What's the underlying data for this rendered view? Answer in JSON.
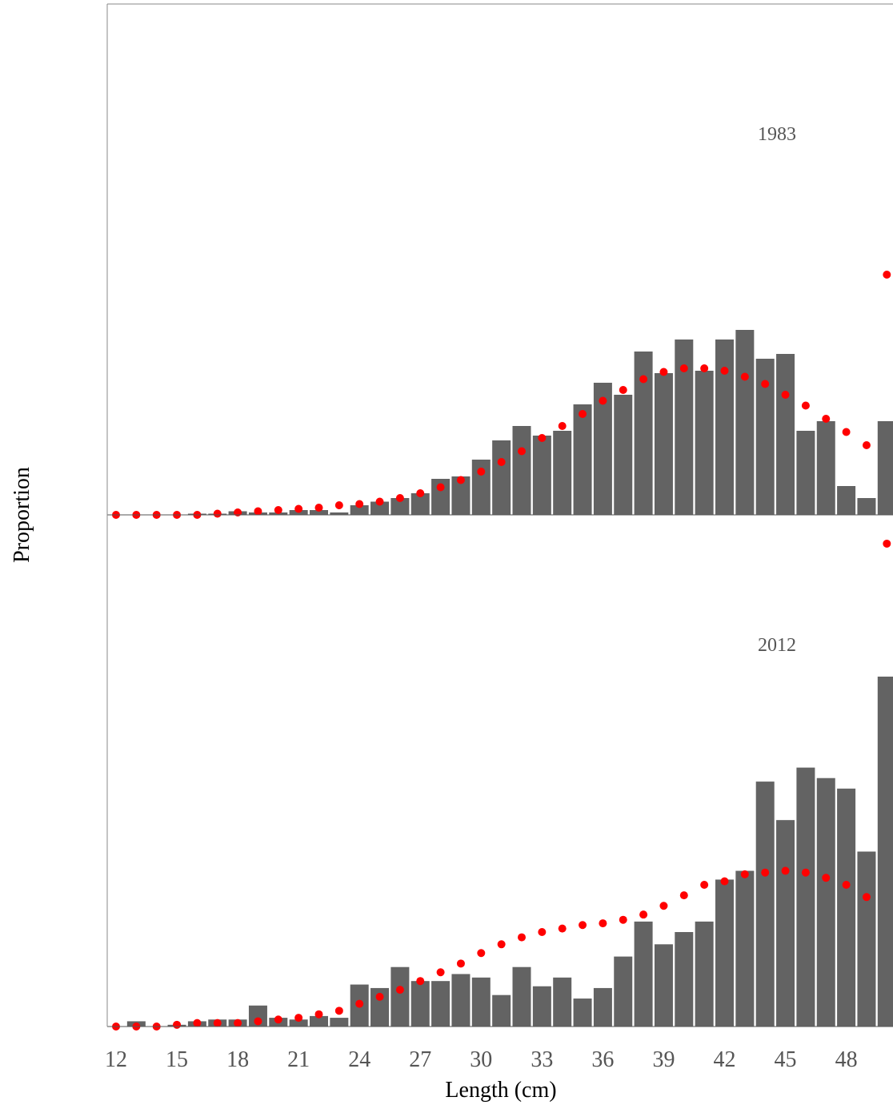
{
  "chart_data": {
    "type": "bar",
    "xlabel": "Length (cm)",
    "ylabel": "Proportion",
    "x_ticks": [
      12,
      15,
      18,
      21,
      24,
      27,
      30,
      33,
      36,
      39,
      42,
      45,
      48
    ],
    "x": [
      12,
      13,
      14,
      15,
      16,
      17,
      18,
      19,
      20,
      21,
      22,
      23,
      24,
      25,
      26,
      27,
      28,
      29,
      30,
      31,
      32,
      33,
      34,
      35,
      36,
      37,
      38,
      39,
      40,
      41,
      42,
      43,
      44,
      45,
      46,
      47,
      48,
      49,
      50
    ],
    "grid": false,
    "legend": "none",
    "colors": {
      "bars": "#636363",
      "points": "#ff0000",
      "frame": "#888888"
    },
    "panels": [
      {
        "label": "1983",
        "ylim": [
          0,
          1.0
        ],
        "observed": [
          0,
          0,
          0,
          0,
          0.005,
          0.005,
          0.015,
          0.01,
          0.01,
          0.02,
          0.02,
          0.01,
          0.04,
          0.055,
          0.07,
          0.09,
          0.15,
          0.16,
          0.23,
          0.31,
          0.37,
          0.33,
          0.35,
          0.46,
          0.55,
          0.5,
          0.68,
          0.59,
          0.73,
          0.6,
          0.73,
          0.77,
          0.65,
          0.67,
          0.35,
          0.39,
          0.12,
          0.07,
          0.39
        ],
        "expected": [
          0,
          0,
          0,
          0,
          0,
          0.005,
          0.01,
          0.015,
          0.02,
          0.025,
          0.03,
          0.04,
          0.045,
          0.055,
          0.07,
          0.09,
          0.115,
          0.145,
          0.18,
          0.22,
          0.265,
          0.32,
          0.37,
          0.42,
          0.475,
          0.52,
          0.565,
          0.595,
          0.61,
          0.61,
          0.6,
          0.575,
          0.545,
          0.5,
          0.455,
          0.4,
          0.345,
          0.29,
          1.0
        ]
      },
      {
        "label": "2012",
        "ylim": [
          0,
          1.0
        ],
        "observed": [
          0,
          0.015,
          0,
          0.005,
          0.015,
          0.02,
          0.02,
          0.06,
          0.025,
          0.02,
          0.03,
          0.025,
          0.12,
          0.11,
          0.17,
          0.13,
          0.13,
          0.15,
          0.14,
          0.09,
          0.17,
          0.115,
          0.14,
          0.08,
          0.11,
          0.2,
          0.3,
          0.235,
          0.27,
          0.3,
          0.42,
          0.445,
          0.7,
          0.59,
          0.74,
          0.71,
          0.68,
          0.5,
          1.0
        ],
        "expected": [
          0,
          0,
          0,
          0.005,
          0.01,
          0.01,
          0.01,
          0.015,
          0.02,
          0.025,
          0.035,
          0.045,
          0.065,
          0.085,
          0.105,
          0.13,
          0.155,
          0.18,
          0.21,
          0.235,
          0.255,
          0.27,
          0.28,
          0.29,
          0.295,
          0.305,
          0.32,
          0.345,
          0.375,
          0.405,
          0.415,
          0.435,
          0.44,
          0.445,
          0.44,
          0.425,
          0.405,
          0.37,
          1.38
        ]
      }
    ]
  }
}
